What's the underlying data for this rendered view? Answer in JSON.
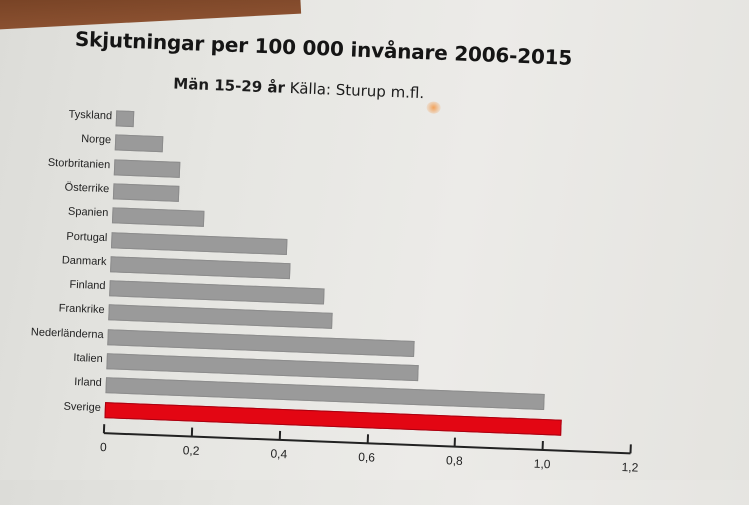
{
  "chart_data": {
    "type": "bar",
    "orientation": "horizontal",
    "title": "Skjutningar per 100 000 invånare 2006-2015",
    "subtitle": "Män 15-29 år Källa: Sturup m.fl.",
    "subtitle_bold": "Män 15-29 år",
    "subtitle_rest": "Källa: Sturup m.fl.",
    "categories": [
      "Tyskland",
      "Norge",
      "Storbritanien",
      "Österrike",
      "Spanien",
      "Portugal",
      "Danmark",
      "Finland",
      "Frankrike",
      "Nederländerna",
      "Italien",
      "Irland",
      "Sverige"
    ],
    "values": [
      0.04,
      0.11,
      0.15,
      0.15,
      0.21,
      0.4,
      0.41,
      0.49,
      0.51,
      0.7,
      0.71,
      1.0,
      1.04
    ],
    "highlight": "Sverige",
    "colors": {
      "default": "#9a9a9a",
      "highlight": "#e30613"
    },
    "xlabel": "",
    "ylabel": "",
    "xlim": [
      0,
      1.2
    ],
    "xticks": [
      "0",
      "0,2",
      "0,4",
      "0,6",
      "0,8",
      "1,0",
      "1,2"
    ],
    "grid": false,
    "legend": null
  }
}
